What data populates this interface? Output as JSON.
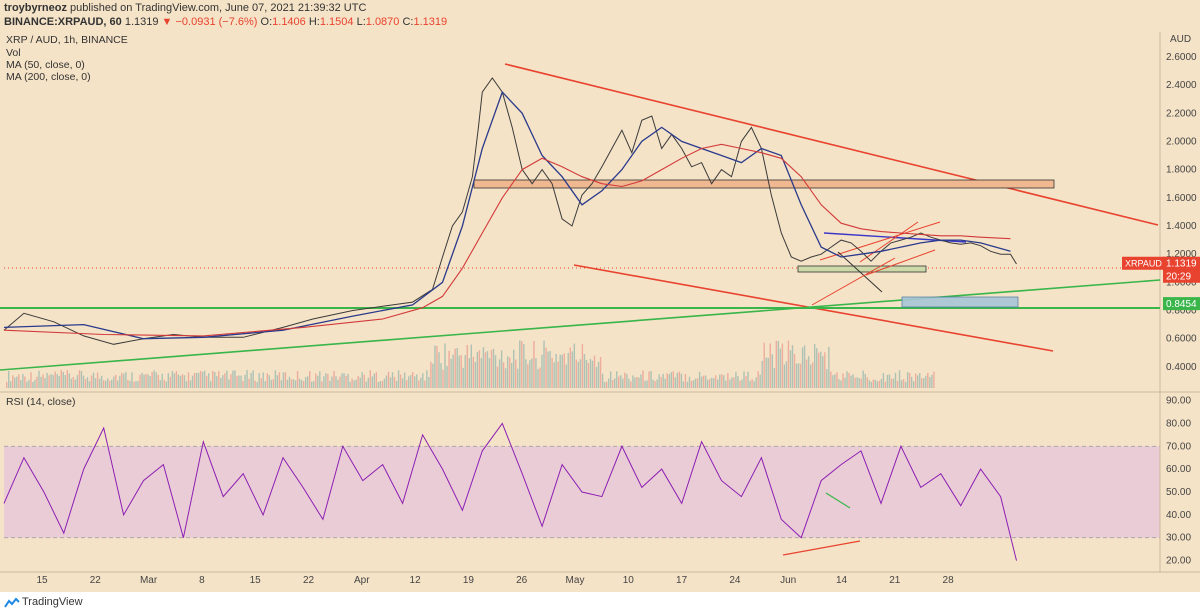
{
  "header": {
    "publisher": "troybyrneoz",
    "published_text": "published on TradingView.com, June 07, 2021 21:39:32 UTC",
    "symbol_line": "BINANCE:XRPAUD, 60",
    "ohlc": {
      "last": "1.1319",
      "change": "−0.0931 (−7.6%)",
      "O": "1.1406",
      "H": "1.1504",
      "L": "1.0870",
      "C": "1.1319"
    }
  },
  "legend": {
    "pair": "XRP / AUD, 1h, BINANCE",
    "vol": "Vol",
    "ma50": "MA (50, close, 0)",
    "ma200": "MA (200, close, 0)",
    "rsi": "RSI (14, close)"
  },
  "brand": "TradingView",
  "currency": "AUD",
  "colors": {
    "background": "#f5e3c7",
    "price_line": "#3b3b3b",
    "ma50": "#2a3a8c",
    "ma200": "#d23a3a",
    "trend_red": "#e8432f",
    "trend_green": "#39b54a",
    "rsi": "#8c1fb3",
    "rsi_band": "#e8c8d8"
  },
  "chart_data": [
    {
      "type": "line",
      "title": "XRP / AUD, 1h, BINANCE",
      "y_axis_side": "right",
      "ylim": [
        0.25,
        2.72
      ],
      "y_ticks": [
        "2.6000",
        "2.4000",
        "2.2000",
        "2.0000",
        "1.8000",
        "1.6000",
        "1.4000",
        "1.2000",
        "1.0000",
        "0.8000",
        "0.6000",
        "0.4000"
      ],
      "x_ticks": [
        "15",
        "22",
        "Mar",
        "8",
        "15",
        "22",
        "Apr",
        "12",
        "19",
        "26",
        "May",
        "10",
        "17",
        "24",
        "Jun",
        "14",
        "21",
        "28"
      ],
      "price_labels": [
        {
          "name": "XRPAUD",
          "value": "1.1319",
          "extra": "20:29",
          "color": "#e8432f"
        },
        {
          "value": "0.8454",
          "color": "#39b54a"
        }
      ],
      "series": [
        {
          "name": "XRPAUD",
          "x": [
            0,
            2,
            5,
            8,
            11,
            14,
            17,
            20,
            24,
            28,
            31,
            35,
            38,
            41,
            43,
            44,
            45,
            46,
            47,
            47.6,
            48,
            49,
            50,
            51,
            52,
            53,
            54,
            55,
            56,
            57,
            58,
            59,
            60,
            61,
            62,
            63,
            64,
            65,
            66,
            67,
            68,
            69,
            70,
            71,
            72,
            73,
            74,
            75,
            76,
            77,
            78,
            79,
            80,
            81,
            82,
            83,
            84,
            85,
            86,
            87,
            88,
            89,
            90,
            91,
            92,
            93,
            94,
            95,
            96,
            97,
            98,
            99,
            100,
            101,
            101.6
          ],
          "y": [
            0.66,
            0.78,
            0.72,
            0.62,
            0.56,
            0.6,
            0.63,
            0.61,
            0.61,
            0.68,
            0.74,
            0.8,
            0.83,
            0.86,
            0.95,
            1.18,
            1.4,
            1.5,
            1.75,
            2.1,
            2.35,
            2.45,
            2.35,
            2.1,
            1.8,
            1.7,
            1.8,
            1.7,
            1.45,
            1.4,
            1.62,
            1.7,
            1.82,
            1.95,
            2.08,
            1.92,
            2.15,
            2.18,
            1.95,
            2.05,
            1.95,
            1.82,
            1.85,
            1.7,
            1.8,
            1.75,
            2.0,
            2.1,
            1.95,
            1.62,
            1.35,
            1.18,
            1.15,
            1.18,
            1.2,
            1.25,
            1.3,
            1.28,
            1.22,
            1.15,
            1.22,
            1.28,
            1.3,
            1.32,
            1.35,
            1.32,
            1.3,
            1.28,
            1.27,
            1.28,
            1.26,
            1.22,
            1.2,
            1.2,
            1.13
          ]
        },
        {
          "name": "MA (50, close, 0)",
          "x": [
            0,
            8,
            14,
            20,
            28,
            35,
            41,
            44,
            46,
            48,
            50,
            52,
            54,
            56,
            58,
            60,
            62,
            64,
            66,
            68,
            70,
            72,
            74,
            76,
            78,
            80,
            82,
            84,
            86,
            88,
            90,
            92,
            94,
            96,
            98,
            101
          ],
          "y": [
            0.68,
            0.7,
            0.6,
            0.61,
            0.66,
            0.76,
            0.84,
            1.0,
            1.4,
            1.95,
            2.35,
            2.2,
            1.9,
            1.75,
            1.55,
            1.65,
            1.8,
            2.0,
            2.1,
            2.0,
            1.95,
            1.9,
            1.85,
            1.95,
            1.9,
            1.55,
            1.25,
            1.18,
            1.2,
            1.22,
            1.25,
            1.28,
            1.3,
            1.3,
            1.28,
            1.22
          ]
        },
        {
          "name": "MA (200, close, 0)",
          "x": [
            0,
            10,
            20,
            30,
            38,
            42,
            44,
            46,
            48,
            50,
            52,
            54,
            56,
            58,
            60,
            62,
            64,
            66,
            68,
            70,
            72,
            74,
            76,
            78,
            80,
            82,
            84,
            86,
            88,
            90,
            92,
            94,
            96,
            98,
            101
          ],
          "y": [
            0.66,
            0.63,
            0.62,
            0.68,
            0.74,
            0.82,
            0.9,
            1.1,
            1.35,
            1.6,
            1.8,
            1.88,
            1.82,
            1.75,
            1.7,
            1.68,
            1.72,
            1.8,
            1.88,
            1.95,
            1.98,
            1.95,
            1.92,
            1.88,
            1.75,
            1.55,
            1.42,
            1.38,
            1.36,
            1.35,
            1.34,
            1.33,
            1.33,
            1.32,
            1.31
          ]
        },
        {
          "name": "RSI (14, close)",
          "panel": "rsi",
          "ylim": [
            15,
            92
          ],
          "y_ticks": [
            "90.00",
            "80.00",
            "70.00",
            "60.00",
            "50.00",
            "40.00",
            "30.00",
            "20.00"
          ],
          "band": [
            30,
            70
          ],
          "x": [
            0,
            2,
            4,
            6,
            8,
            10,
            12,
            14,
            16,
            18,
            20,
            22,
            24,
            26,
            28,
            30,
            32,
            34,
            36,
            38,
            40,
            42,
            44,
            46,
            48,
            50,
            52,
            54,
            56,
            58,
            60,
            62,
            64,
            66,
            68,
            70,
            72,
            74,
            76,
            78,
            80,
            82,
            84,
            86,
            88,
            90,
            92,
            94,
            96,
            98,
            100,
            101.6
          ],
          "y": [
            45,
            65,
            50,
            32,
            60,
            78,
            40,
            55,
            62,
            30,
            72,
            48,
            58,
            40,
            65,
            52,
            38,
            70,
            55,
            62,
            45,
            75,
            60,
            42,
            68,
            80,
            58,
            35,
            62,
            50,
            48,
            70,
            52,
            60,
            45,
            72,
            55,
            48,
            65,
            38,
            30,
            55,
            62,
            68,
            45,
            70,
            52,
            58,
            44,
            60,
            48,
            20
          ]
        }
      ],
      "annotations": [
        "descending channel",
        "support band 1.70–1.75",
        "horizontal support 0.8454",
        "rising trendline",
        "triangle",
        "RSI bullish divergence"
      ]
    }
  ]
}
